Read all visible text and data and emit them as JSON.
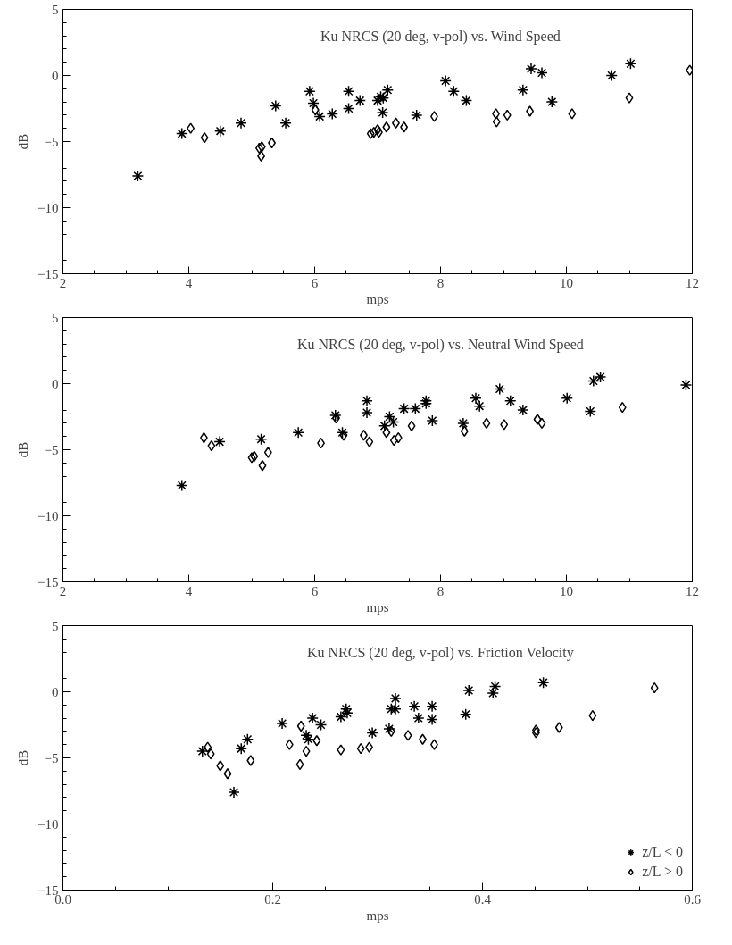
{
  "chart_data": [
    {
      "type": "scatter",
      "title": "Ku NRCS (20 deg, v-pol) vs. Wind Speed",
      "xlabel": "mps",
      "ylabel": "dB",
      "xlim": [
        2,
        12
      ],
      "xticks": [
        2,
        4,
        6,
        8,
        10,
        12
      ],
      "ylim": [
        -15,
        5
      ],
      "yticks": [
        -15,
        -10,
        -5,
        0,
        5
      ],
      "grid": false,
      "legend": false,
      "series": [
        {
          "color": "#000000",
          "marker": "cross",
          "x": [
            3.19,
            3.89,
            4.5,
            4.83,
            5.38,
            5.54,
            5.92,
            5.98,
            6.08,
            6.28,
            6.54,
            6.54,
            6.72,
            7.0,
            7.05,
            7.09,
            7.08,
            7.16,
            7.62,
            8.08,
            8.21,
            8.41,
            9.31,
            9.44,
            9.61,
            9.77,
            10.72,
            11.02
          ],
          "values": [
            -7.6,
            -4.4,
            -4.2,
            -3.6,
            -2.3,
            -3.6,
            -1.2,
            -2.1,
            -3.1,
            -2.9,
            -1.2,
            -2.5,
            -1.9,
            -1.9,
            -1.6,
            -1.7,
            -2.8,
            -1.1,
            -3.0,
            -0.4,
            -1.2,
            -1.9,
            -1.1,
            0.5,
            0.2,
            -2.0,
            0.0,
            0.9
          ]
        },
        {
          "color": "#000000",
          "marker": "diamond",
          "x": [
            4.03,
            4.25,
            5.12,
            5.16,
            5.15,
            5.32,
            6.01,
            6.89,
            6.94,
            7.0,
            7.02,
            7.14,
            7.29,
            7.42,
            7.9,
            8.88,
            8.89,
            9.06,
            9.42,
            10.09,
            11.0,
            11.96
          ],
          "values": [
            -4.0,
            -4.7,
            -5.5,
            -5.4,
            -6.1,
            -5.1,
            -2.6,
            -4.4,
            -4.3,
            -4.1,
            -4.3,
            -3.9,
            -3.6,
            -3.9,
            -3.1,
            -2.9,
            -3.5,
            -3.0,
            -2.7,
            -2.9,
            -1.7,
            0.4
          ]
        }
      ]
    },
    {
      "type": "scatter",
      "title": "Ku NRCS (20 deg, v-pol) vs. Neutral Wind Speed",
      "xlabel": "mps",
      "ylabel": "dB",
      "xlim": [
        2,
        12
      ],
      "xticks": [
        2,
        4,
        6,
        8,
        10,
        12
      ],
      "ylim": [
        -15,
        5
      ],
      "yticks": [
        -15,
        -10,
        -5,
        0,
        5
      ],
      "grid": false,
      "legend": false,
      "series": [
        {
          "color": "#000000",
          "marker": "cross",
          "x": [
            3.89,
            4.49,
            5.15,
            5.74,
            6.33,
            6.44,
            6.83,
            6.83,
            7.11,
            7.19,
            7.25,
            7.42,
            7.6,
            7.77,
            7.77,
            7.87,
            8.36,
            8.56,
            8.62,
            8.94,
            9.11,
            9.31,
            10.01,
            10.38,
            10.43,
            10.54,
            11.9
          ],
          "values": [
            -7.7,
            -4.4,
            -4.2,
            -3.7,
            -2.4,
            -3.7,
            -1.3,
            -2.2,
            -3.2,
            -2.5,
            -2.9,
            -1.9,
            -1.9,
            -1.5,
            -1.3,
            -2.8,
            -3.0,
            -1.1,
            -1.7,
            -0.4,
            -1.3,
            -2.0,
            -1.1,
            -2.1,
            0.2,
            0.5,
            -0.1
          ]
        },
        {
          "color": "#000000",
          "marker": "diamond",
          "x": [
            4.24,
            4.36,
            5.0,
            5.04,
            5.17,
            5.26,
            6.1,
            6.34,
            6.46,
            6.78,
            6.87,
            7.14,
            7.26,
            7.33,
            7.54,
            8.38,
            8.73,
            9.01,
            9.54,
            9.61,
            10.89
          ],
          "values": [
            -4.1,
            -4.7,
            -5.6,
            -5.5,
            -6.2,
            -5.2,
            -4.5,
            -2.6,
            -3.9,
            -3.9,
            -4.4,
            -3.7,
            -4.3,
            -4.1,
            -3.2,
            -3.6,
            -3.0,
            -3.1,
            -2.7,
            -3.0,
            -1.8
          ]
        }
      ]
    },
    {
      "type": "scatter",
      "title": "Ku NRCS (20 deg, v-pol) vs. Friction Velocity",
      "xlabel": "mps",
      "ylabel": "dB",
      "xlim": [
        0,
        0.6
      ],
      "xticks": [
        {
          "value": 0,
          "label": "0.0"
        },
        0.2,
        0.4,
        0.6
      ],
      "ylim": [
        -15,
        5
      ],
      "yticks": [
        -15,
        -10,
        -5,
        0,
        5
      ],
      "grid": false,
      "legend": "bottom right",
      "series": [
        {
          "name": "z/L < 0",
          "color": "#000000",
          "marker": "cross",
          "x": [
            0.133,
            0.163,
            0.17,
            0.176,
            0.209,
            0.232,
            0.234,
            0.238,
            0.246,
            0.265,
            0.27,
            0.271,
            0.295,
            0.311,
            0.317,
            0.313,
            0.317,
            0.335,
            0.339,
            0.352,
            0.352,
            0.384,
            0.387,
            0.41,
            0.412,
            0.458
          ],
          "values": [
            -4.5,
            -7.6,
            -4.3,
            -3.6,
            -2.4,
            -3.3,
            -3.6,
            -2.0,
            -2.5,
            -1.9,
            -1.3,
            -1.6,
            -3.1,
            -2.8,
            -0.5,
            -1.3,
            -1.3,
            -1.1,
            -2.0,
            -1.1,
            -2.1,
            -1.7,
            0.1,
            -0.1,
            0.4,
            0.7
          ]
        },
        {
          "name": "z/L > 0",
          "color": "#000000",
          "marker": "diamond",
          "x": [
            0.138,
            0.141,
            0.15,
            0.157,
            0.179,
            0.216,
            0.226,
            0.227,
            0.232,
            0.242,
            0.265,
            0.284,
            0.292,
            0.313,
            0.329,
            0.343,
            0.354,
            0.451,
            0.451,
            0.473,
            0.505,
            0.564
          ],
          "values": [
            -4.2,
            -4.7,
            -5.6,
            -6.2,
            -5.2,
            -4.0,
            -5.5,
            -2.6,
            -4.5,
            -3.7,
            -4.4,
            -4.3,
            -4.2,
            -3.0,
            -3.3,
            -3.6,
            -4.0,
            -2.9,
            -3.1,
            -2.7,
            -1.8,
            0.3
          ]
        }
      ]
    }
  ]
}
